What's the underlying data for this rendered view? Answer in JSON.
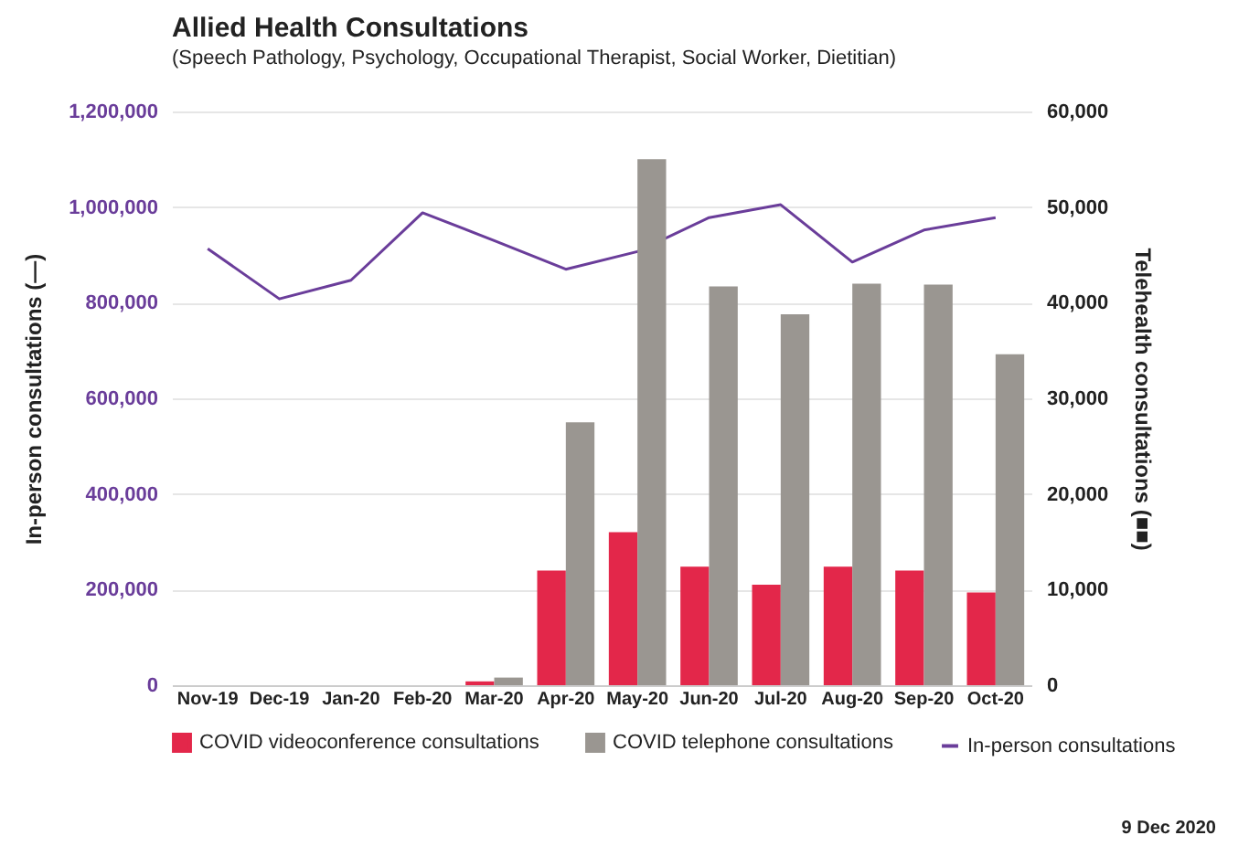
{
  "chart_data": {
    "type": "bar",
    "title": "Allied Health Consultations",
    "subtitle": "(Speech Pathology, Psychology, Occupational Therapist, Social Worker, Dietitian)",
    "ylabel": "In-person consultations (—)",
    "y2label": "Telehealth consultations (■■)",
    "categories": [
      "Nov-19",
      "Dec-19",
      "Jan-20",
      "Feb-20",
      "Mar-20",
      "Apr-20",
      "May-20",
      "Jun-20",
      "Jul-20",
      "Aug-20",
      "Sep-20",
      "Oct-20"
    ],
    "series": [
      {
        "name": "COVID videoconference consultations",
        "color": "#e3274a",
        "axis": "y2",
        "values": [
          null,
          null,
          null,
          null,
          400,
          12000,
          16000,
          12400,
          10500,
          12400,
          12000,
          9700
        ]
      },
      {
        "name": "COVID telephone consultations",
        "color": "#9a9691",
        "axis": "y2",
        "values": [
          null,
          null,
          null,
          null,
          800,
          27500,
          55000,
          41700,
          38800,
          42000,
          41900,
          34600
        ]
      },
      {
        "name": "In-person consultations",
        "type": "line",
        "color": "#6a3d9a",
        "axis": "y",
        "values": [
          913000,
          808000,
          847000,
          988000,
          930000,
          870000,
          907000,
          978000,
          1005000,
          885000,
          952000,
          978000
        ]
      }
    ],
    "ylim": [
      0,
      1200000
    ],
    "yticks": [
      0,
      {
        "value": 200000,
        "label": "200,000"
      },
      {
        "value": 400000,
        "label": "400,000"
      },
      {
        "value": 600000,
        "label": "600,000"
      },
      {
        "value": 800000,
        "label": "800,000"
      },
      {
        "value": 1000000,
        "label": "1,000,000"
      },
      {
        "value": 1200000,
        "label": "1,200,000"
      }
    ],
    "y2lim": [
      0,
      60000
    ],
    "y2ticks": [
      0,
      {
        "value": 10000,
        "label": "10,000"
      },
      {
        "value": 20000,
        "label": "20,000"
      },
      {
        "value": 30000,
        "label": "30,000"
      },
      {
        "value": 40000,
        "label": "40,000"
      },
      {
        "value": 50000,
        "label": "50,000"
      },
      {
        "value": 60000,
        "label": "60,000"
      }
    ],
    "grid": "y",
    "legend": "bottom",
    "marker": "none",
    "line_style": "solid",
    "annotations": [
      "9 Dec 2020"
    ]
  }
}
